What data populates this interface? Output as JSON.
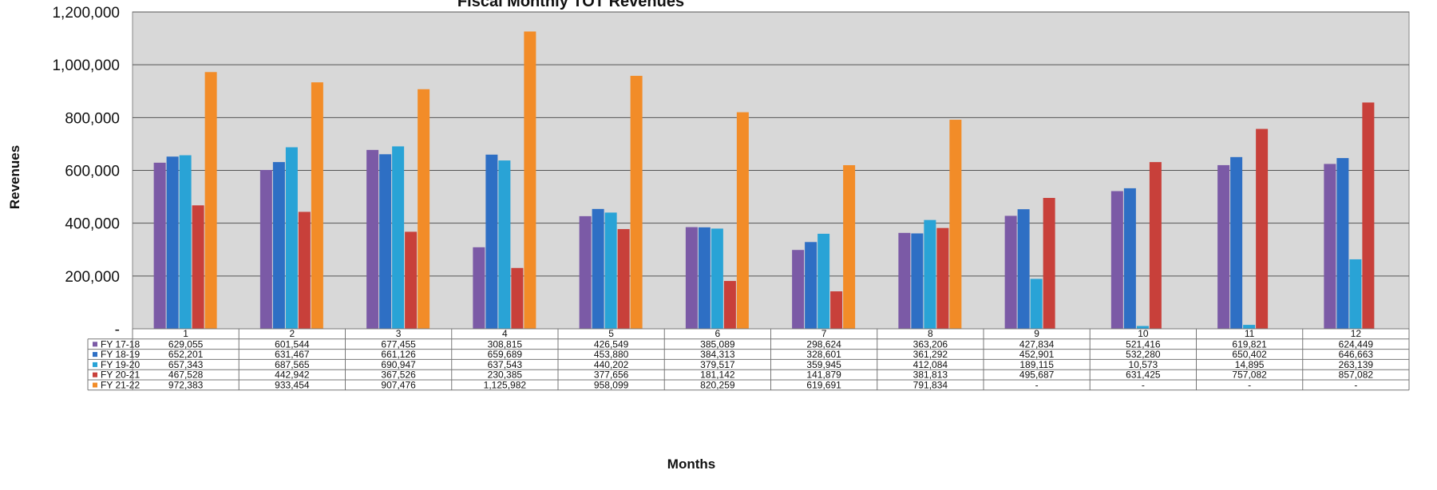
{
  "chart_data": {
    "type": "bar",
    "title": "Fiscal Monthly TOT Revenues",
    "xlabel": "Months",
    "ylabel": "Revenues",
    "ylim": [
      0,
      1200000
    ],
    "yticks": [
      "-",
      "200,000",
      "400,000",
      "600,000",
      "800,000",
      "1,000,000",
      "1,200,000"
    ],
    "grid": true,
    "legend": "data-table",
    "categories": [
      "1",
      "2",
      "3",
      "4",
      "5",
      "6",
      "7",
      "8",
      "9",
      "10",
      "11",
      "12"
    ],
    "series": [
      {
        "name": "FY 17-18",
        "color": "#7b5aa6",
        "values": [
          629055,
          601544,
          677455,
          308815,
          426549,
          385089,
          298624,
          363206,
          427834,
          521416,
          619821,
          624449
        ],
        "labels": [
          "629,055",
          "601,544",
          "677,455",
          "308,815",
          "426,549",
          "385,089",
          "298,624",
          "363,206",
          "427,834",
          "521,416",
          "619,821",
          "624,449"
        ]
      },
      {
        "name": "FY 18-19",
        "color": "#2e6fc4",
        "values": [
          652201,
          631467,
          661126,
          659689,
          453880,
          384313,
          328601,
          361292,
          452901,
          532280,
          650402,
          646663
        ],
        "labels": [
          "652,201",
          "631,467",
          "661,126",
          "659,689",
          "453,880",
          "384,313",
          "328,601",
          "361,292",
          "452,901",
          "532,280",
          "650,402",
          "646,663"
        ]
      },
      {
        "name": "FY 19-20",
        "color": "#29a3d6",
        "values": [
          657343,
          687565,
          690947,
          637543,
          440202,
          379517,
          359945,
          412084,
          189115,
          10573,
          14895,
          263139
        ],
        "labels": [
          "657,343",
          "687,565",
          "690,947",
          "637,543",
          "440,202",
          "379,517",
          "359,945",
          "412,084",
          "189,115",
          "10,573",
          "14,895",
          "263,139"
        ]
      },
      {
        "name": "FY 20-21",
        "color": "#c8403a",
        "values": [
          467528,
          442942,
          367526,
          230385,
          377656,
          181142,
          141879,
          381813,
          495687,
          631425,
          757082,
          857082
        ],
        "labels": [
          "467,528",
          "442,942",
          "367,526",
          "230,385",
          "377,656",
          "181,142",
          "141,879",
          "381,813",
          "495,687",
          "631,425",
          "757,082",
          "857,082"
        ]
      },
      {
        "name": "FY 21-22",
        "color": "#f28c28",
        "values": [
          972383,
          933454,
          907476,
          1125982,
          958099,
          820259,
          619691,
          791834,
          null,
          null,
          null,
          null
        ],
        "labels": [
          "972,383",
          "933,454",
          "907,476",
          "1,125,982",
          "958,099",
          "820,259",
          "619,691",
          "791,834",
          "-",
          "-",
          "-",
          "-"
        ]
      }
    ]
  }
}
